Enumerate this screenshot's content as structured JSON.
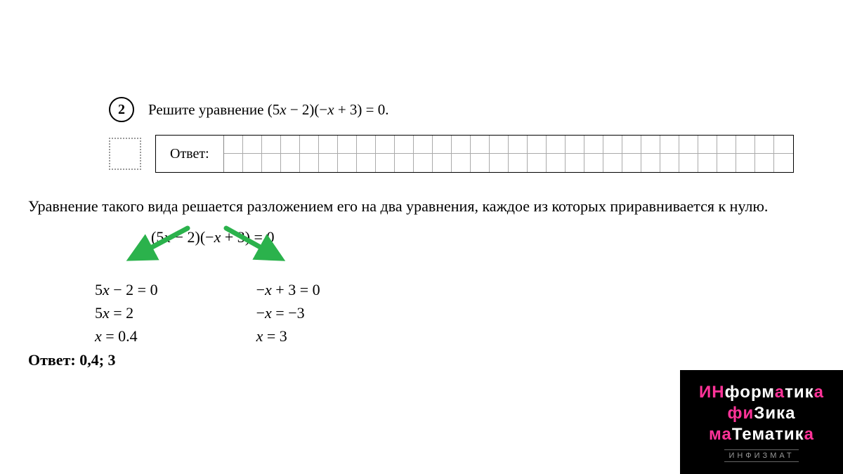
{
  "problem": {
    "number": "2",
    "text_prefix": "Решите уравнение ",
    "equation_display": "(5x − 2)(−x + 3) = 0.",
    "answer_label": "Ответ:",
    "grid_columns": 30
  },
  "explanation": "Уравнение такого вида решается разложением его на два уравнения, каждое из которых приравнивается к нулю.",
  "main_equation": "(5x − 2)(−x + 3) = 0",
  "solution_left": {
    "line1": "5x − 2 = 0",
    "line2": "5x = 2",
    "line3": "x = 0.4"
  },
  "solution_right": {
    "line1": "−x + 3 = 0",
    "line2": "−x = −3",
    "line3": "x = 3"
  },
  "final_answer_label": "Ответ: ",
  "final_answer_value": "0,4; 3",
  "arrows": {
    "color": "#2bb24c",
    "stroke_width": 6
  },
  "logo": {
    "line1_pink": "ИН",
    "line1_white": "форм",
    "line1_pink2": "а",
    "line1_white2": "тик",
    "line1_pink3": "а",
    "line2_pink": "фи",
    "line2_white": "з",
    "line2_pink2": "",
    "line2_white2": "ика",
    "line3_pink": "ма",
    "line3_white": "т",
    "line3_white2": "ематик",
    "line3_pink2": "а",
    "sub": "ИНФИЗМАТ"
  },
  "colors": {
    "text": "#000000",
    "background": "#ffffff",
    "arrow": "#2bb24c",
    "logo_bg": "#000000",
    "logo_pink": "#ff3399",
    "logo_white": "#ffffff"
  }
}
